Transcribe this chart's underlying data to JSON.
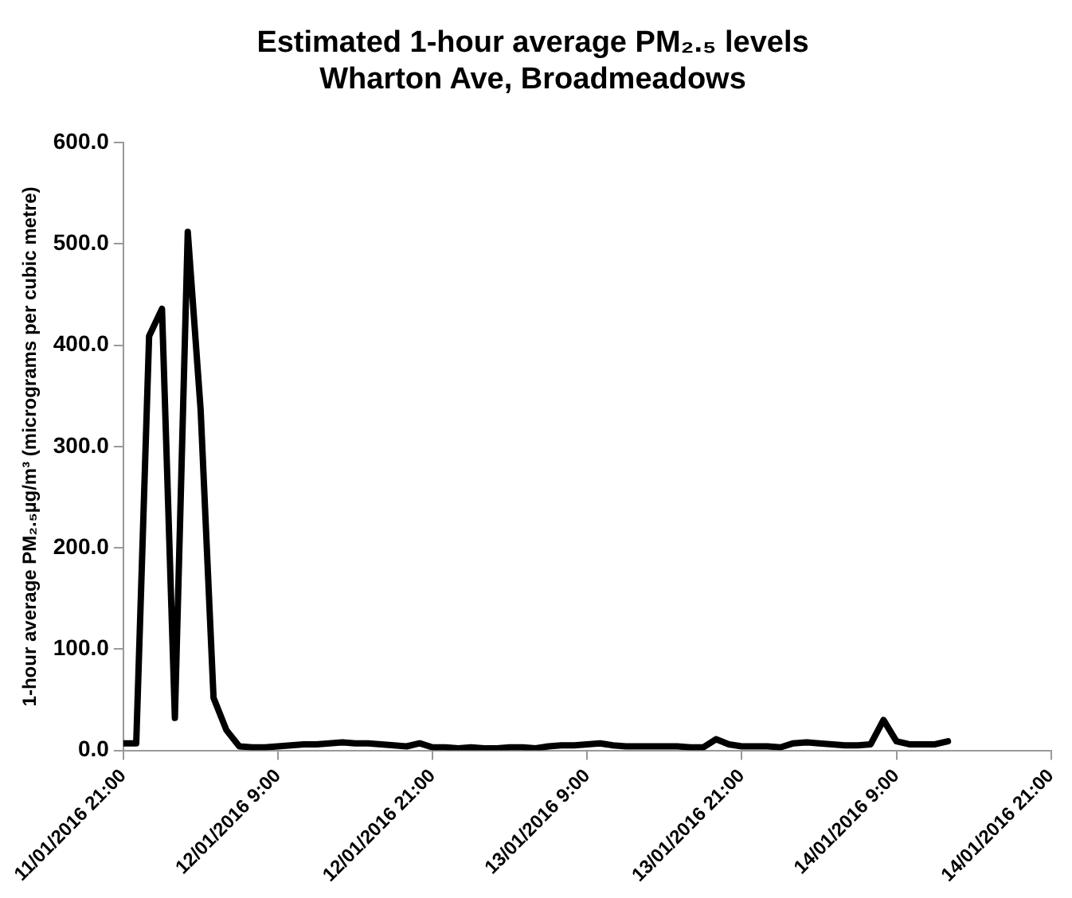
{
  "chart_data": {
    "type": "line",
    "title": "Estimated 1-hour average PM₂.₅ levels",
    "subtitle": "Wharton Ave, Broadmeadows",
    "ylabel": "1-hour average PM₂.₅µg/m³ (micrograms per cubic metre)",
    "series": [
      {
        "color": "#000000",
        "x": [
          "2016-01-11T21:00",
          "2016-01-11T22:00",
          "2016-01-11T23:00",
          "2016-01-12T00:00",
          "2016-01-12T01:00",
          "2016-01-12T02:00",
          "2016-01-12T03:00",
          "2016-01-12T04:00",
          "2016-01-12T05:00",
          "2016-01-12T06:00",
          "2016-01-12T07:00",
          "2016-01-12T08:00",
          "2016-01-12T09:00",
          "2016-01-12T10:00",
          "2016-01-12T11:00",
          "2016-01-12T12:00",
          "2016-01-12T13:00",
          "2016-01-12T14:00",
          "2016-01-12T15:00",
          "2016-01-12T16:00",
          "2016-01-12T17:00",
          "2016-01-12T18:00",
          "2016-01-12T19:00",
          "2016-01-12T20:00",
          "2016-01-12T21:00",
          "2016-01-12T22:00",
          "2016-01-12T23:00",
          "2016-01-13T00:00",
          "2016-01-13T01:00",
          "2016-01-13T02:00",
          "2016-01-13T03:00",
          "2016-01-13T04:00",
          "2016-01-13T05:00",
          "2016-01-13T06:00",
          "2016-01-13T07:00",
          "2016-01-13T08:00",
          "2016-01-13T09:00",
          "2016-01-13T10:00",
          "2016-01-13T11:00",
          "2016-01-13T12:00",
          "2016-01-13T13:00",
          "2016-01-13T14:00",
          "2016-01-13T15:00",
          "2016-01-13T16:00",
          "2016-01-13T17:00",
          "2016-01-13T18:00",
          "2016-01-13T19:00",
          "2016-01-13T20:00",
          "2016-01-13T21:00",
          "2016-01-13T22:00",
          "2016-01-13T23:00",
          "2016-01-14T00:00",
          "2016-01-14T01:00",
          "2016-01-14T02:00",
          "2016-01-14T03:00",
          "2016-01-14T04:00",
          "2016-01-14T05:00",
          "2016-01-14T06:00",
          "2016-01-14T07:00",
          "2016-01-14T08:00",
          "2016-01-14T09:00",
          "2016-01-14T10:00",
          "2016-01-14T11:00",
          "2016-01-14T12:00",
          "2016-01-14T13:00"
        ],
        "values": [
          7,
          7,
          409,
          436,
          32,
          512,
          336,
          52,
          20,
          4,
          3,
          3,
          4,
          5,
          6,
          6,
          7,
          8,
          7,
          7,
          6,
          5,
          4,
          7,
          3,
          3,
          2,
          3,
          2,
          2,
          3,
          3,
          2,
          4,
          5,
          5,
          6,
          7,
          5,
          4,
          4,
          4,
          4,
          4,
          3,
          3,
          11,
          6,
          4,
          4,
          4,
          3,
          7,
          8,
          7,
          6,
          5,
          5,
          6,
          30,
          9,
          6,
          6,
          6,
          9
        ]
      }
    ],
    "xlim": [
      "2016-01-11T21:00",
      "2016-01-14T21:00"
    ],
    "xticks": [
      {
        "value": "2016-01-11T21:00",
        "label": "11/01/2016 21:00"
      },
      {
        "value": "2016-01-12T09:00",
        "label": "12/01/2016 9:00"
      },
      {
        "value": "2016-01-12T21:00",
        "label": "12/01/2016 21:00"
      },
      {
        "value": "2016-01-13T09:00",
        "label": "13/01/2016 9:00"
      },
      {
        "value": "2016-01-13T21:00",
        "label": "13/01/2016 21:00"
      },
      {
        "value": "2016-01-14T09:00",
        "label": "14/01/2016 9:00"
      },
      {
        "value": "2016-01-14T21:00",
        "label": "14/01/2016 21:00"
      }
    ],
    "ylim": [
      0,
      600
    ],
    "yticks": [
      {
        "value": 0,
        "label": "0.0"
      },
      {
        "value": 100,
        "label": "100.0"
      },
      {
        "value": 200,
        "label": "200.0"
      },
      {
        "value": 300,
        "label": "300.0"
      },
      {
        "value": 400,
        "label": "400.0"
      },
      {
        "value": 500,
        "label": "500.0"
      },
      {
        "value": 600,
        "label": "600.0"
      }
    ],
    "grid": false,
    "legend": false,
    "marker": "none",
    "line_style": "solid"
  }
}
